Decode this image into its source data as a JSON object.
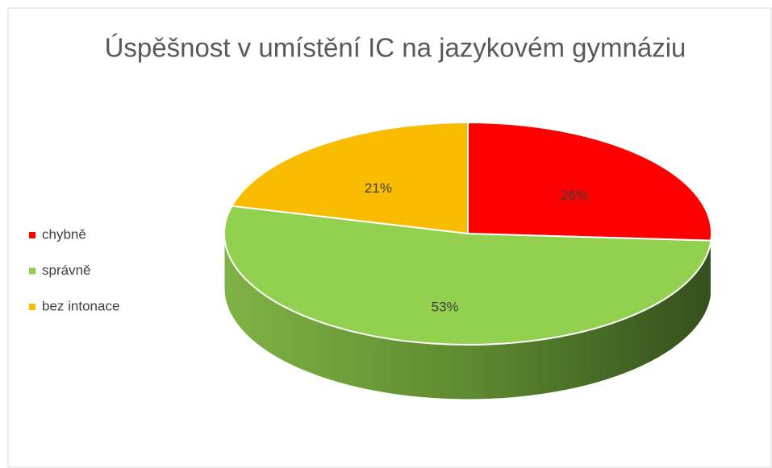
{
  "chart_data": {
    "type": "pie",
    "title": "Úspěšnost v umístění IC na jazykovém gymnáziu",
    "categories": [
      "chybně",
      "správně",
      "bez intonace"
    ],
    "values": [
      26,
      53,
      21
    ],
    "value_labels": [
      "26%",
      "53%",
      "21%"
    ],
    "colors": [
      "#ff0000",
      "#92d050",
      "#f9bc00"
    ],
    "legend": "left"
  }
}
